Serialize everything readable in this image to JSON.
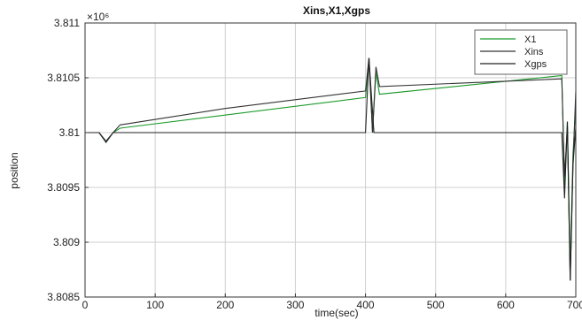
{
  "chart_data": {
    "type": "line",
    "title": "Xins,X1,Xgps",
    "xlabel": "time(sec)",
    "ylabel": "position",
    "xlim": [
      0,
      700
    ],
    "ylim": [
      3.8085,
      3.811
    ],
    "y_exponent_label": "×10⁶",
    "xticks": [
      0,
      100,
      200,
      300,
      400,
      500,
      600,
      700
    ],
    "xtick_labels": [
      "0",
      "100",
      "200",
      "300",
      "400",
      "500",
      "600",
      "700"
    ],
    "yticks": [
      3.8085,
      3.809,
      3.8095,
      3.81,
      3.8105,
      3.811
    ],
    "ytick_labels": [
      "3.8085",
      "3.809",
      "3.8095",
      "3.81",
      "3.8105",
      "3.811"
    ],
    "grid": true,
    "legend_position": "top-right",
    "series": [
      {
        "name": "X1",
        "color": "#1a9a2a",
        "points": [
          [
            0,
            3.81
          ],
          [
            20,
            3.81
          ],
          [
            30,
            3.80992
          ],
          [
            40,
            3.81
          ],
          [
            50,
            3.81004
          ],
          [
            400,
            3.81032
          ],
          [
            405,
            3.81068
          ],
          [
            410,
            3.81
          ],
          [
            415,
            3.81055
          ],
          [
            420,
            3.81035
          ],
          [
            680,
            3.81052
          ],
          [
            684,
            3.8095
          ],
          [
            688,
            3.8101
          ],
          [
            692,
            3.80875
          ],
          [
            696,
            3.8098
          ],
          [
            700,
            3.81025
          ]
        ]
      },
      {
        "name": "Xins",
        "color": "#333333",
        "points": [
          [
            0,
            3.81
          ],
          [
            20,
            3.81
          ],
          [
            30,
            3.80991
          ],
          [
            40,
            3.81
          ],
          [
            50,
            3.81007
          ],
          [
            200,
            3.81022
          ],
          [
            400,
            3.81038
          ],
          [
            405,
            3.81068
          ],
          [
            410,
            3.81
          ],
          [
            415,
            3.8106
          ],
          [
            420,
            3.81042
          ],
          [
            680,
            3.81049
          ],
          [
            684,
            3.8096
          ],
          [
            688,
            3.81005
          ],
          [
            692,
            3.80865
          ],
          [
            696,
            3.8097
          ],
          [
            700,
            3.81038
          ]
        ]
      },
      {
        "name": "Xgps",
        "color": "#222222",
        "points": [
          [
            0,
            3.81
          ],
          [
            20,
            3.81
          ],
          [
            30,
            3.80992
          ],
          [
            40,
            3.81
          ],
          [
            400,
            3.81
          ],
          [
            405,
            3.81068
          ],
          [
            412,
            3.81
          ],
          [
            680,
            3.81
          ],
          [
            684,
            3.8094
          ],
          [
            688,
            3.8101
          ],
          [
            692,
            3.80865
          ],
          [
            696,
            3.8097
          ],
          [
            700,
            3.81005
          ]
        ]
      }
    ]
  }
}
